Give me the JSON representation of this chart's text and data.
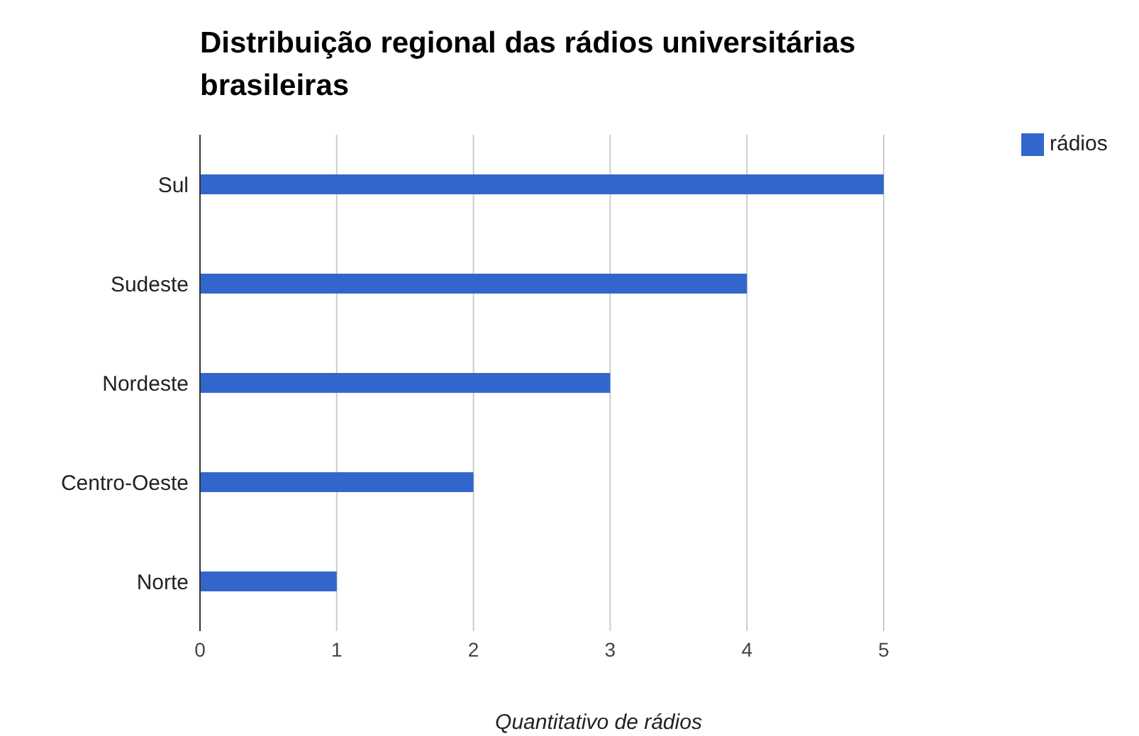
{
  "chart_data": {
    "type": "bar",
    "orientation": "horizontal",
    "title": "Distribuição regional das rádios universitárias brasileiras",
    "xlabel": "Quantitativo de rádios",
    "categories": [
      "Sul",
      "Sudeste",
      "Nordeste",
      "Centro-Oeste",
      "Norte"
    ],
    "series": [
      {
        "name": "rádios",
        "color": "#3366cc",
        "values": [
          5,
          4,
          3,
          2,
          1
        ]
      }
    ],
    "xlim": [
      0,
      5
    ],
    "xticks": [
      0,
      1,
      2,
      3,
      4,
      5
    ],
    "grid": "x",
    "legend": "top right"
  }
}
